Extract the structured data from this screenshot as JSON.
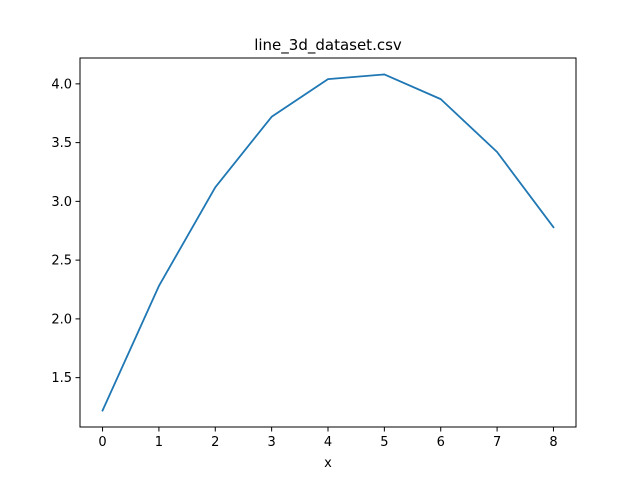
{
  "chart_data": {
    "type": "line",
    "title": "line_3d_dataset.csv",
    "xlabel": "x",
    "ylabel": "",
    "x": [
      0,
      1,
      2,
      3,
      4,
      5,
      6,
      7,
      8
    ],
    "series": [
      {
        "values": [
          1.22,
          2.28,
          3.12,
          3.72,
          4.04,
          4.08,
          3.87,
          3.42,
          2.78
        ],
        "color": "#1f77b4"
      }
    ],
    "xlim": [
      -0.4,
      8.4
    ],
    "ylim": [
      1.08,
      4.22
    ],
    "xticks": [
      "0",
      "1",
      "2",
      "3",
      "4",
      "5",
      "6",
      "7",
      "8"
    ],
    "yticks": [
      "1.5",
      "2.0",
      "2.5",
      "3.0",
      "3.5",
      "4.0"
    ],
    "grid": false,
    "legend": "none"
  }
}
